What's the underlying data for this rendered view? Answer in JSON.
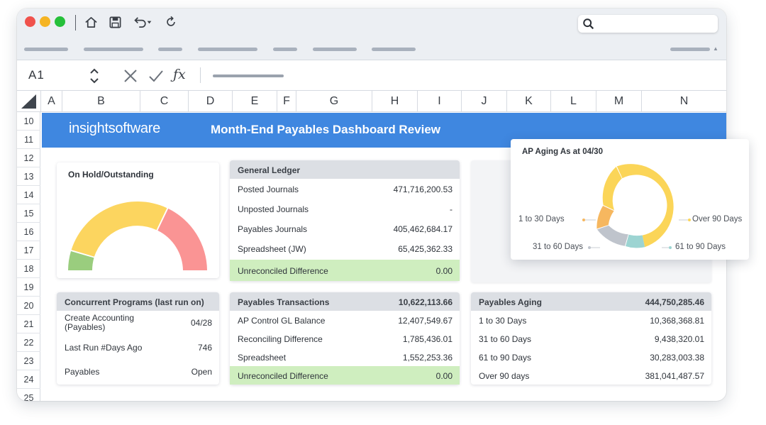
{
  "toolbar": {
    "window_controls": [
      "close",
      "minimize",
      "maximize"
    ],
    "icons": [
      "home-icon",
      "save-icon",
      "undo-icon",
      "refresh-icon"
    ]
  },
  "formula_bar": {
    "cell_reference": "A1",
    "icons": [
      "cancel-icon",
      "confirm-icon",
      "function-icon"
    ]
  },
  "grid": {
    "columns": [
      "A",
      "B",
      "C",
      "D",
      "E",
      "F",
      "G",
      "H",
      "I",
      "J",
      "K",
      "L",
      "M",
      "N"
    ],
    "rows": [
      "10",
      "11",
      "12",
      "13",
      "14",
      "15",
      "16",
      "17",
      "18",
      "19",
      "20",
      "21",
      "22",
      "23",
      "24",
      "25"
    ]
  },
  "banner": {
    "logo": "insightsoftware",
    "title": "Month-End Payables Dashboard Review"
  },
  "on_hold": {
    "title": "On Hold/Outstanding",
    "colors": [
      "#9acd7e",
      "#fcd55f",
      "#fa9494"
    ]
  },
  "general_ledger": {
    "title": "General Ledger",
    "rows": [
      {
        "label": "Posted Journals",
        "value": "471,716,200.53"
      },
      {
        "label": "Unposted Journals",
        "value": "-"
      },
      {
        "label": "Payables Journals",
        "value": "405,462,684.17"
      },
      {
        "label": "Spreadsheet (JW)",
        "value": "65,425,362.33"
      },
      {
        "label": "Unreconciled Difference",
        "value": "0.00"
      }
    ]
  },
  "ap_aging_chart": {
    "title": "AP Aging As at 04/30",
    "labels": {
      "d1_30": "1 to 30 Days",
      "d31_60": "31 to 60 Days",
      "d61_90": "61 to 90 Days",
      "over90": "Over 90 Days"
    },
    "colors": {
      "d1_30": "#f6b75f",
      "d31_60": "#bfc4cc",
      "d61_90": "#9cd4d2",
      "over90": "#fbd558"
    }
  },
  "concurrent_programs": {
    "title": "Concurrent Programs (last run on)",
    "rows": [
      {
        "label": "Create Accounting",
        "label2": "(Payables)",
        "value": "04/28"
      },
      {
        "label": "Last Run #Days Ago",
        "value": "746"
      },
      {
        "label": "Payables",
        "value": "Open"
      }
    ]
  },
  "payables_transactions": {
    "title": "Payables Transactions",
    "total": "10,622,113.66",
    "rows": [
      {
        "label": "AP Control GL Balance",
        "value": "12,407,549.67"
      },
      {
        "label": "Reconciling Difference",
        "value": "1,785,436.01"
      },
      {
        "label": "Spreadsheet",
        "value": "1,552,253.36"
      },
      {
        "label": "Unreconciled Difference",
        "value": "0.00"
      }
    ]
  },
  "payables_aging": {
    "title": "Payables Aging",
    "total": "444,750,285.46",
    "rows": [
      {
        "label": "1 to 30 Days",
        "value": "10,368,368.81"
      },
      {
        "label": "31 to 60 Days",
        "value": "9,438,320.01"
      },
      {
        "label": "61 to 90 Days",
        "value": "30,283,003.38"
      },
      {
        "label": "Over 90 days",
        "value": "381,041,487.57"
      }
    ]
  }
}
